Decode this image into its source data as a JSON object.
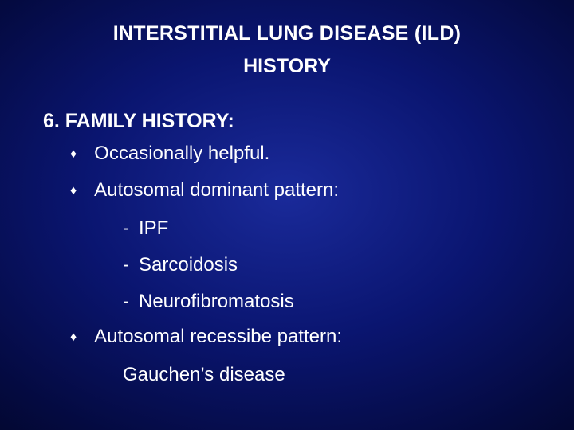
{
  "colors": {
    "text": "#ffffff",
    "background_gradient_inner": "#1a2a9a",
    "background_gradient_mid": "#0a1570",
    "background_gradient_outer": "#010520"
  },
  "typography": {
    "font_family": "Arial",
    "title_fontsize_pt": 25,
    "body_fontsize_pt": 24,
    "diamond_fontsize_pt": 16,
    "title_weight": "bold",
    "heading_weight": "bold"
  },
  "title": {
    "line1": "INTERSTITIAL LUNG DISEASE (ILD)",
    "line2": "HISTORY"
  },
  "section_heading": "6. FAMILY HISTORY:",
  "bullets": {
    "b0": {
      "marker": "♦",
      "text": "Occasionally helpful."
    },
    "b1": {
      "marker": "♦",
      "text": "Autosomal dominant pattern:"
    },
    "b2": {
      "marker": "♦",
      "text": "Autosomal recessibe pattern:"
    }
  },
  "sub_items": {
    "s0": {
      "dash": "-",
      "text": "IPF"
    },
    "s1": {
      "dash": "-",
      "text": "Sarcoidosis"
    },
    "s2": {
      "dash": "-",
      "text": "Neurofibromatosis"
    }
  },
  "trailing_line": "Gauchen’s disease"
}
